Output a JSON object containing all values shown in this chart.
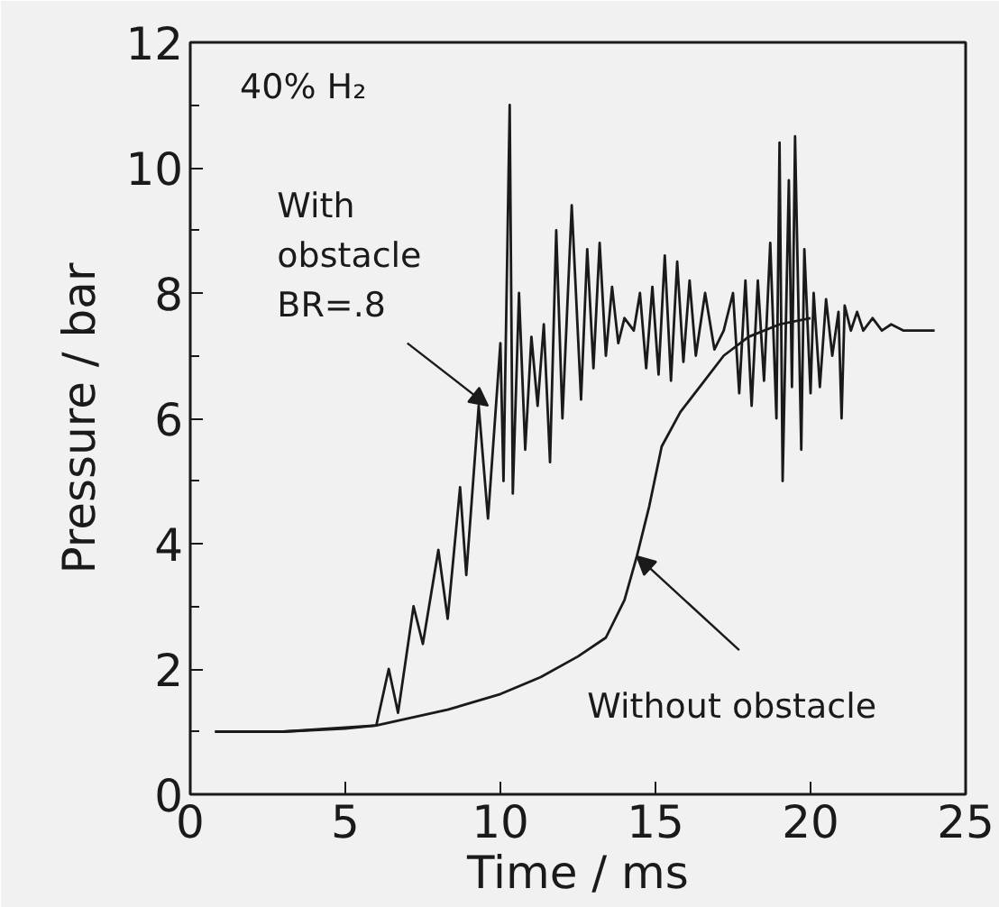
{
  "chart_data": {
    "type": "line",
    "xlabel": "Time / ms",
    "ylabel": "Pressure / bar",
    "xlim": [
      0,
      25
    ],
    "ylim": [
      0,
      12
    ],
    "xticks": [
      0,
      5,
      10,
      15,
      20,
      25
    ],
    "yticks": [
      0,
      2,
      4,
      6,
      8,
      10,
      12
    ],
    "grid": false,
    "marker": "none",
    "line_style": "solid",
    "series": [
      {
        "color": "#1a1a1a",
        "x": [
          0.8,
          3,
          5,
          6.0,
          6.4,
          6.7,
          7.2,
          7.5,
          8.0,
          8.3,
          8.7,
          8.9,
          9.3,
          9.6,
          10.0,
          10.1,
          10.3,
          10.4,
          10.6,
          10.8,
          11.0,
          11.2,
          11.4,
          11.6,
          11.8,
          12.0,
          12.3,
          12.6,
          12.8,
          13.0,
          13.2,
          13.4,
          13.6,
          13.8,
          14.0,
          14.3,
          14.5,
          14.7,
          14.9,
          15.1,
          15.3,
          15.5,
          15.7,
          15.9,
          16.1,
          16.3,
          16.6,
          16.9,
          17.2,
          17.5,
          17.7,
          17.9,
          18.1,
          18.3,
          18.5,
          18.7,
          18.9,
          19.0,
          19.1,
          19.3,
          19.4,
          19.5,
          19.7,
          19.8,
          20.0,
          20.1,
          20.3,
          20.5,
          20.7,
          20.9,
          21.0,
          21.1,
          21.3,
          21.5,
          21.7,
          22.0,
          22.3,
          22.6,
          23.0,
          23.5,
          24.0
        ],
        "values": [
          1.0,
          1.0,
          1.05,
          1.1,
          2.0,
          1.3,
          3.0,
          2.4,
          3.9,
          2.8,
          4.9,
          3.5,
          6.2,
          4.4,
          7.2,
          5.0,
          11.0,
          4.8,
          8.0,
          5.5,
          7.3,
          6.2,
          7.5,
          5.3,
          9.0,
          6.0,
          9.4,
          6.3,
          8.7,
          6.8,
          8.8,
          7.0,
          8.1,
          7.2,
          7.6,
          7.4,
          8.0,
          6.8,
          8.1,
          6.7,
          8.6,
          6.6,
          8.5,
          6.9,
          8.2,
          7.0,
          8.0,
          7.1,
          7.4,
          8.0,
          6.4,
          8.2,
          6.2,
          8.2,
          6.6,
          8.8,
          6.0,
          10.4,
          5.0,
          9.8,
          6.5,
          10.5,
          5.5,
          8.7,
          6.4,
          8.0,
          6.5,
          7.9,
          7.0,
          7.7,
          6.0,
          7.8,
          7.4,
          7.7,
          7.4,
          7.6,
          7.4,
          7.5,
          7.4,
          7.4,
          7.4
        ]
      },
      {
        "color": "#1a1a1a",
        "x": [
          0.8,
          3,
          6,
          8.3,
          10,
          11.3,
          12.5,
          13.4,
          14.0,
          14.4,
          14.8,
          15.2,
          15.8,
          16.5,
          17.2,
          18,
          19,
          20
        ],
        "values": [
          1.0,
          1.0,
          1.1,
          1.35,
          1.6,
          1.87,
          2.2,
          2.5,
          3.1,
          3.8,
          4.6,
          5.55,
          6.1,
          6.55,
          7.0,
          7.3,
          7.5,
          7.6
        ]
      }
    ],
    "annotations": [
      "40% H₂",
      {
        "text": "With\nobstacle\nBR=.8",
        "x": 9.6,
        "y": 6.2
      },
      {
        "text": "Without  obstacle",
        "x": 14.4,
        "y": 3.8
      }
    ]
  }
}
